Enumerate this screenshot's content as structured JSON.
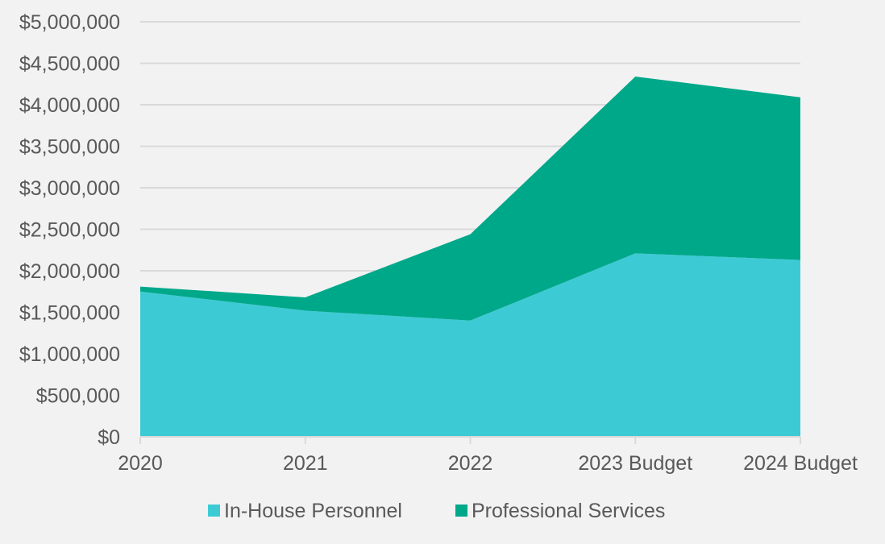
{
  "chart_data": {
    "type": "area",
    "stacked": true,
    "title": "",
    "xlabel": "",
    "ylabel": "",
    "categories": [
      "2020",
      "2021",
      "2022",
      "2023 Budget",
      "2024 Budget"
    ],
    "series": [
      {
        "name": "In-House Personnel",
        "color": "#3ccbd4",
        "values": [
          1750000,
          1520000,
          1400000,
          2210000,
          2130000
        ]
      },
      {
        "name": "Professional Services",
        "color": "#00a88a",
        "values": [
          60000,
          160000,
          1040000,
          2130000,
          1960000
        ]
      }
    ],
    "ylim": [
      0,
      5000000
    ],
    "yticks": [
      0,
      500000,
      1000000,
      1500000,
      2000000,
      2500000,
      3000000,
      3500000,
      4000000,
      4500000,
      5000000
    ],
    "ytick_labels": [
      "$0",
      "$500,000",
      "$1,000,000",
      "$1,500,000",
      "$2,000,000",
      "$2,500,000",
      "$3,000,000",
      "$3,500,000",
      "$4,000,000",
      "$4,500,000",
      "$5,000,000"
    ],
    "grid": true,
    "legend_position": "bottom"
  }
}
